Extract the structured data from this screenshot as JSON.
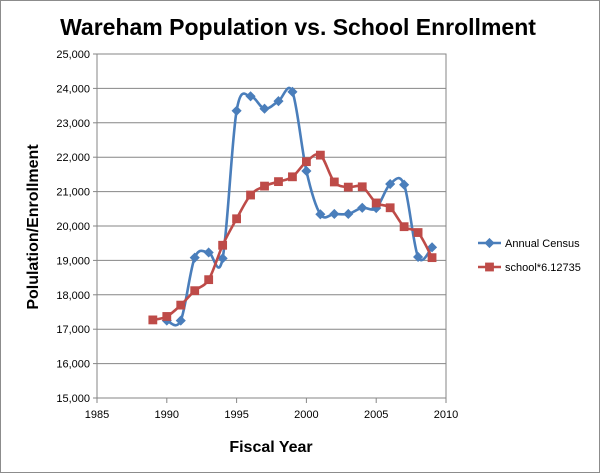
{
  "chart_data": {
    "type": "line",
    "title": "Wareham Population vs. School Enrollment",
    "xlabel": "Fiscal Year",
    "ylabel": "Polulation/Enrollment",
    "xlim": [
      1985,
      2010
    ],
    "ylim": [
      15000,
      25000
    ],
    "x_ticks": [
      "1985",
      "1990",
      "1995",
      "2000",
      "2005",
      "2010"
    ],
    "y_ticks": [
      "15,000",
      "16,000",
      "17,000",
      "18,000",
      "19,000",
      "20,000",
      "21,000",
      "22,000",
      "23,000",
      "24,000",
      "25,000"
    ],
    "grid": "horizontal",
    "legend_position": "right",
    "series": [
      {
        "name": "Annual Census",
        "color": "#4a7ebb",
        "marker": "diamond",
        "x": [
          1990,
          1991,
          1992,
          1993,
          1994,
          1995,
          1996,
          1997,
          1998,
          1999,
          2000,
          2001,
          2002,
          2003,
          2004,
          2005,
          2006,
          2007,
          2008,
          2009
        ],
        "y": [
          17250,
          17250,
          19080,
          19230,
          19060,
          23350,
          23770,
          23410,
          23630,
          23900,
          21600,
          20340,
          20350,
          20350,
          20530,
          20520,
          21220,
          21200,
          19100,
          19380
        ]
      },
      {
        "name": "school*6.12735",
        "color": "#be4b48",
        "marker": "square",
        "x": [
          1989,
          1990,
          1991,
          1992,
          1993,
          1994,
          1995,
          1996,
          1997,
          1998,
          1999,
          2000,
          2001,
          2002,
          2003,
          2004,
          2005,
          2006,
          2007,
          2008,
          2009
        ],
        "y": [
          17270,
          17370,
          17700,
          18120,
          18440,
          19440,
          20210,
          20900,
          21160,
          21290,
          21430,
          21870,
          22060,
          21280,
          21130,
          21140,
          20670,
          20530,
          19980,
          19810,
          19080
        ]
      }
    ]
  }
}
